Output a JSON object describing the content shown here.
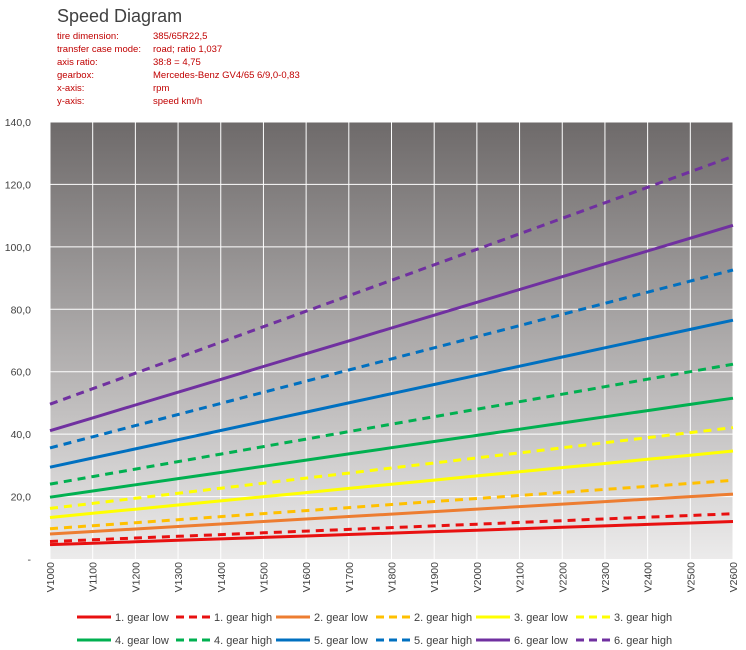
{
  "header": {
    "title": "Speed Diagram",
    "info": [
      {
        "key": "tire dimension:",
        "value": "385/65R22,5"
      },
      {
        "key": "transfer case mode:",
        "value": "road; ratio 1,037"
      },
      {
        "key": "axis ratio:",
        "value": "38:8 = 4,75"
      },
      {
        "key": "gearbox:",
        "value": "Mercedes-Benz GV4/65  6/9,0-0,83"
      },
      {
        "key": "x-axis:",
        "value": "rpm"
      },
      {
        "key": "y-axis:",
        "value": "speed km/h"
      }
    ]
  },
  "chart_data": {
    "type": "line",
    "title": "Speed Diagram",
    "categories": [
      "V1000",
      "V1100",
      "V1200",
      "V1300",
      "V1400",
      "V1500",
      "V1600",
      "V1700",
      "V1800",
      "V1900",
      "V2000",
      "V2100",
      "V2200",
      "V2300",
      "V2400",
      "V2500",
      "V2600"
    ],
    "ylim": [
      0,
      140
    ],
    "ytick_labels": [
      "-",
      "20,0",
      "40,0",
      "60,0",
      "80,0",
      "100,0",
      "120,0",
      "140,0"
    ],
    "grid": true,
    "legend": "bottom",
    "series": [
      {
        "name": "1. gear low",
        "color": "#e81010",
        "dashed": false,
        "start": 4.6,
        "end": 12.0
      },
      {
        "name": "1. gear high",
        "color": "#e81010",
        "dashed": true,
        "start": 5.6,
        "end": 14.5
      },
      {
        "name": "2. gear low",
        "color": "#ed7d31",
        "dashed": false,
        "start": 8.0,
        "end": 20.8
      },
      {
        "name": "2. gear high",
        "color": "#ffc000",
        "dashed": true,
        "start": 9.7,
        "end": 25.2
      },
      {
        "name": "3. gear low",
        "color": "#ffff00",
        "dashed": false,
        "start": 13.3,
        "end": 34.6
      },
      {
        "name": "3. gear high",
        "color": "#ffff00",
        "dashed": true,
        "start": 16.2,
        "end": 42.1
      },
      {
        "name": "4. gear low",
        "color": "#00b050",
        "dashed": false,
        "start": 19.8,
        "end": 51.5
      },
      {
        "name": "4. gear high",
        "color": "#00b050",
        "dashed": true,
        "start": 24.0,
        "end": 62.4
      },
      {
        "name": "5. gear low",
        "color": "#0070c0",
        "dashed": false,
        "start": 29.4,
        "end": 76.5
      },
      {
        "name": "5. gear high",
        "color": "#0070c0",
        "dashed": true,
        "start": 35.6,
        "end": 92.6
      },
      {
        "name": "6. gear low",
        "color": "#7030a0",
        "dashed": false,
        "start": 41.1,
        "end": 106.9
      },
      {
        "name": "6. gear high",
        "color": "#7030a0",
        "dashed": true,
        "start": 49.6,
        "end": 129.0
      }
    ]
  }
}
